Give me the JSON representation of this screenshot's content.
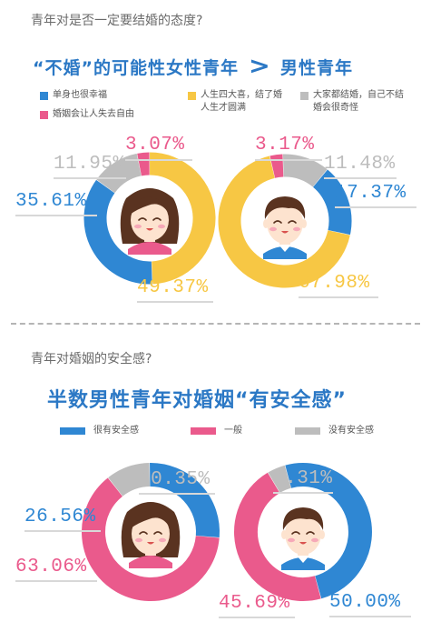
{
  "section1": {
    "question": "青年对是否一定要结婚的态度?",
    "headline_left": "“不婚”的可能性女性青年",
    "headline_symbol": ">",
    "headline_right": "男性青年",
    "legend": [
      {
        "label": "单身也很幸福",
        "color": "#2f87d3"
      },
      {
        "label": "婚姻会让人失去自由",
        "color": "#ea5a8c"
      },
      {
        "label": "人生四大喜，结了婚人生才圆满",
        "color": "#f7c744"
      },
      {
        "label": "大家都结婚，自己不结婚会很奇怪",
        "color": "#bdbdbd"
      }
    ]
  },
  "section2": {
    "question": "青年对婚姻的安全感?",
    "headline": "半数男性青年对婚姻“有安全感”",
    "legend": [
      {
        "label": "很有安全感",
        "color": "#2f87d3"
      },
      {
        "label": "一般",
        "color": "#ea5a8c"
      },
      {
        "label": "没有安全感",
        "color": "#bdbdbd"
      }
    ]
  },
  "chart_data": [
    {
      "type": "pie",
      "subject": "female",
      "slices": [
        {
          "label": "单身也很幸福",
          "value": 35.61,
          "display": "35.61%",
          "color": "#2f87d3"
        },
        {
          "label": "婚姻会让人失去自由",
          "value": 3.07,
          "display": "3.07%",
          "color": "#ea5a8c"
        },
        {
          "label": "人生四大喜，结了婚人生才圆满",
          "value": 49.37,
          "display": "49.37%",
          "color": "#f7c744"
        },
        {
          "label": "大家都结婚，自己不结婚会很奇怪",
          "value": 11.95,
          "display": "11.95%",
          "color": "#bdbdbd"
        }
      ]
    },
    {
      "type": "pie",
      "subject": "male",
      "slices": [
        {
          "label": "单身也很幸福",
          "value": 17.37,
          "display": "17.37%",
          "color": "#2f87d3"
        },
        {
          "label": "婚姻会让人失去自由",
          "value": 3.17,
          "display": "3.17%",
          "color": "#ea5a8c"
        },
        {
          "label": "人生四大喜，结了婚人生才圆满",
          "value": 67.98,
          "display": "67.98%",
          "color": "#f7c744"
        },
        {
          "label": "大家都结婚，自己不结婚会很奇怪",
          "value": 11.48,
          "display": "11.48%",
          "color": "#bdbdbd"
        }
      ]
    },
    {
      "type": "pie",
      "subject": "female",
      "slices": [
        {
          "label": "很有安全感",
          "value": 26.56,
          "display": "26.56%",
          "color": "#2f87d3"
        },
        {
          "label": "一般",
          "value": 63.06,
          "display": "63.06%",
          "color": "#ea5a8c"
        },
        {
          "label": "没有安全感",
          "value": 10.35,
          "display": "10.35%",
          "color": "#bdbdbd"
        }
      ]
    },
    {
      "type": "pie",
      "subject": "male",
      "slices": [
        {
          "label": "很有安全感",
          "value": 50.0,
          "display": "50.00%",
          "color": "#2f87d3"
        },
        {
          "label": "一般",
          "value": 45.69,
          "display": "45.69%",
          "color": "#ea5a8c"
        },
        {
          "label": "没有安全感",
          "value": 4.31,
          "display": "4.31%",
          "color": "#bdbdbd"
        }
      ]
    }
  ]
}
